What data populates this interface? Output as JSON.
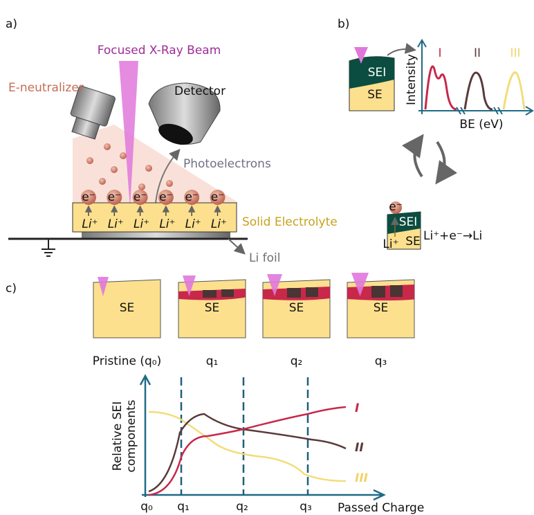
{
  "panel_a": {
    "label": "a)",
    "beam": "Focused X-Ray Beam",
    "neutralizer": "E-neutralizer",
    "detector": "Detector",
    "photoelectrons": "Photoelectrons",
    "electrolyte": "Solid Electrolyte",
    "foil": "Li foil",
    "electrons": [
      "e⁻",
      "e⁻",
      "e⁻",
      "e⁻",
      "e⁻",
      "e⁻"
    ],
    "ions": [
      "Li⁺",
      "Li⁺",
      "Li⁺",
      "Li⁺",
      "Li⁺",
      "Li⁺"
    ]
  },
  "panel_b": {
    "label": "b)",
    "sei": "SEI",
    "se": "SE",
    "y_axis": "Intensity",
    "peaks": [
      "I",
      "II",
      "III"
    ],
    "x_axis": "BE (eV)",
    "reaction_sei": "SEI",
    "reaction_se": "SE",
    "reaction_ion": "Li⁺",
    "reaction_electron": "e⁻",
    "equation": "Li⁺+e⁻→Li"
  },
  "panel_c": {
    "label": "c)",
    "samples": [
      {
        "body": "SE",
        "caption": "Pristine (q₀)"
      },
      {
        "body": "SE",
        "caption": "q₁"
      },
      {
        "body": "SE",
        "caption": "q₂"
      },
      {
        "body": "SE",
        "caption": "q₃"
      }
    ],
    "y_axis": [
      "Relative SEI",
      "components"
    ],
    "curves": [
      "I",
      "II",
      "III"
    ],
    "x_ticks": [
      "q₀",
      "q₁",
      "q₂",
      "q₃"
    ],
    "x_axis": "Passed Charge"
  }
}
